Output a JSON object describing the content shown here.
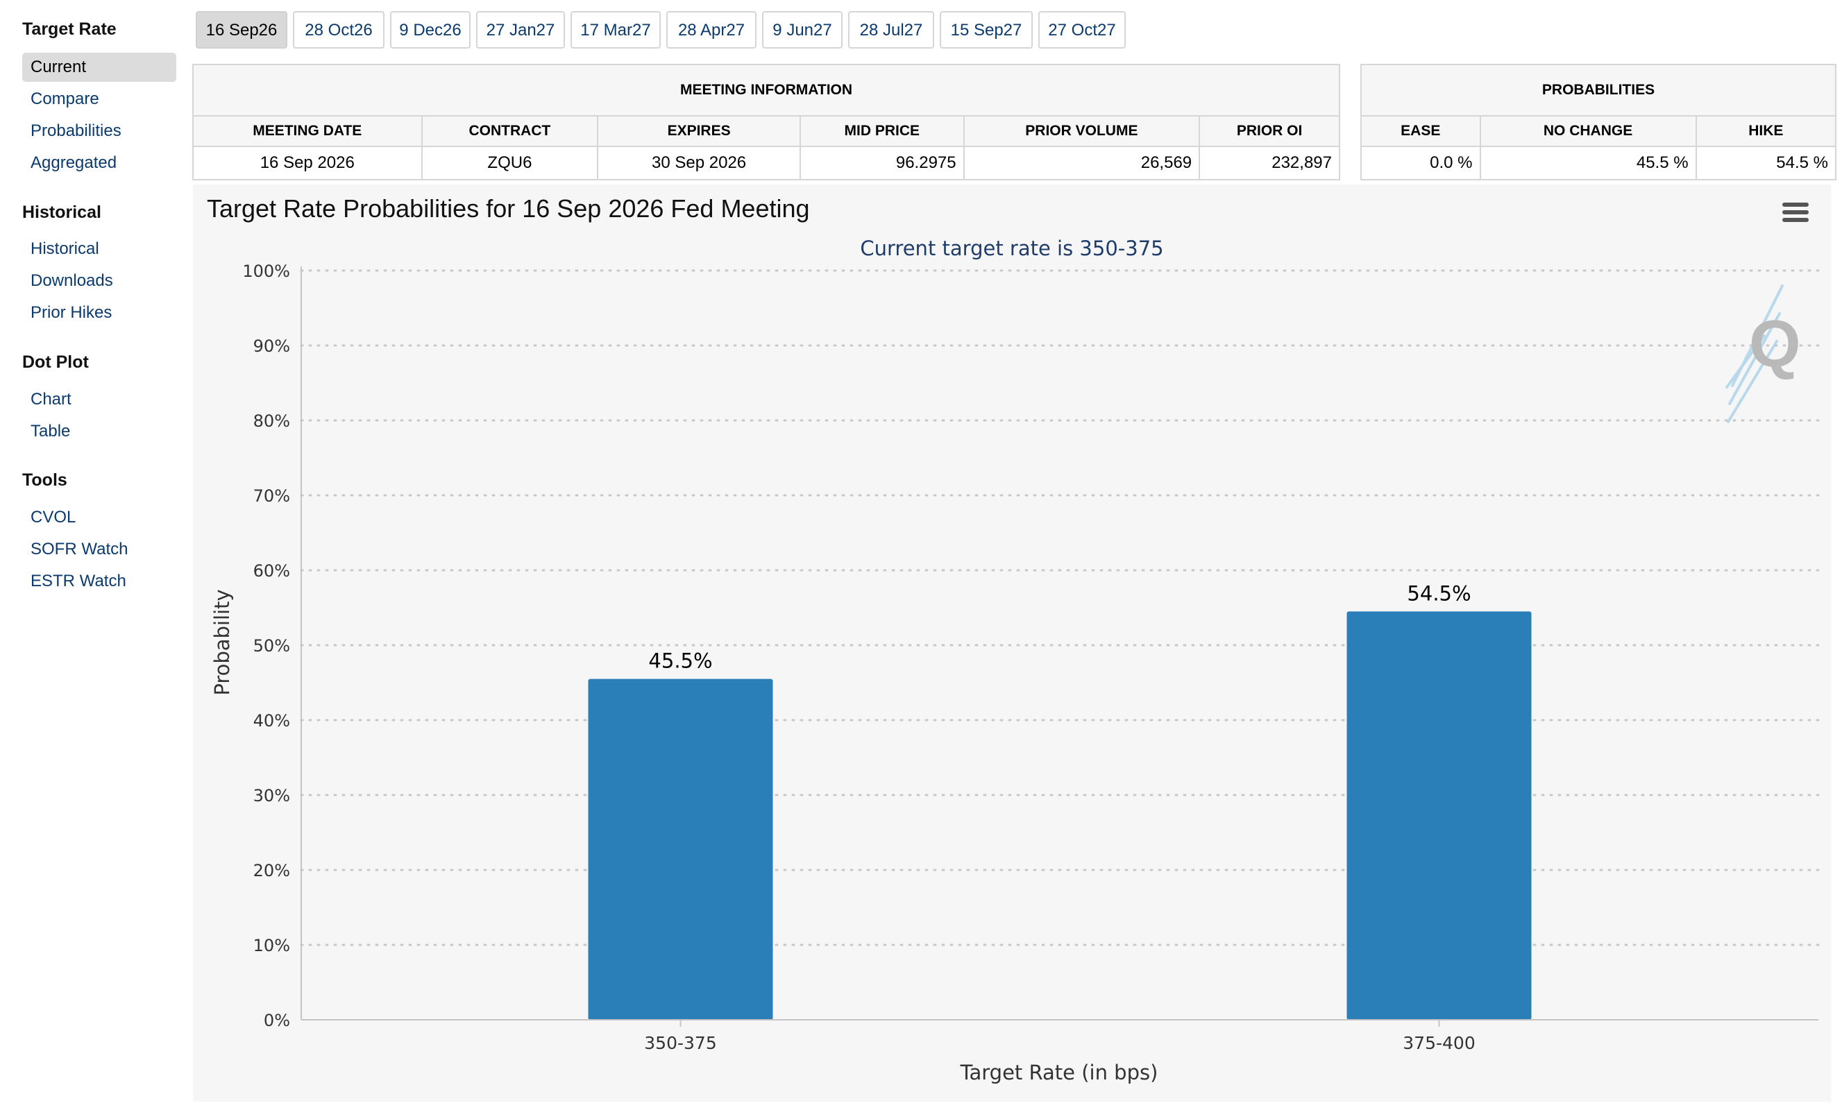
{
  "sidebar": {
    "sections": [
      {
        "heading": "Target Rate",
        "items": [
          "Current",
          "Compare",
          "Probabilities",
          "Aggregated"
        ]
      },
      {
        "heading": "Historical",
        "items": [
          "Historical",
          "Downloads",
          "Prior Hikes"
        ]
      },
      {
        "heading": "Dot Plot",
        "items": [
          "Chart",
          "Table"
        ]
      },
      {
        "heading": "Tools",
        "items": [
          "CVOL",
          "SOFR Watch",
          "ESTR Watch"
        ]
      }
    ],
    "active_item": "Current"
  },
  "tabs": [
    "16 Sep26",
    "28 Oct26",
    "9 Dec26",
    "27 Jan27",
    "17 Mar27",
    "28 Apr27",
    "9 Jun27",
    "28 Jul27",
    "15 Sep27",
    "27 Oct27"
  ],
  "active_tab": "16 Sep26",
  "meeting_info": {
    "title": "MEETING INFORMATION",
    "headers": [
      "MEETING DATE",
      "CONTRACT",
      "EXPIRES",
      "MID PRICE",
      "PRIOR VOLUME",
      "PRIOR OI"
    ],
    "values": [
      "16 Sep 2026",
      "ZQU6",
      "30 Sep 2026",
      "96.2975",
      "26,569",
      "232,897"
    ]
  },
  "probabilities": {
    "title": "PROBABILITIES",
    "headers": [
      "EASE",
      "NO CHANGE",
      "HIKE"
    ],
    "values": [
      "0.0 %",
      "45.5 %",
      "54.5 %"
    ]
  },
  "chart": {
    "title": "Target Rate Probabilities for 16 Sep 2026 Fed Meeting",
    "menu_icon": "hamburger-icon",
    "watermark_icon": "q-logo-icon"
  },
  "chart_data": {
    "type": "bar",
    "subtitle": "Current target rate is 350-375",
    "categories": [
      "350-375",
      "375-400"
    ],
    "values": [
      45.5,
      54.5
    ],
    "data_labels": [
      "45.5%",
      "54.5%"
    ],
    "xlabel": "Target Rate (in bps)",
    "ylabel": "Probability",
    "ylim": [
      0,
      100
    ],
    "yticks": [
      "0%",
      "10%",
      "20%",
      "30%",
      "40%",
      "50%",
      "60%",
      "70%",
      "80%",
      "90%",
      "100%"
    ],
    "grid": true,
    "bar_color": "#2a7fb8"
  }
}
